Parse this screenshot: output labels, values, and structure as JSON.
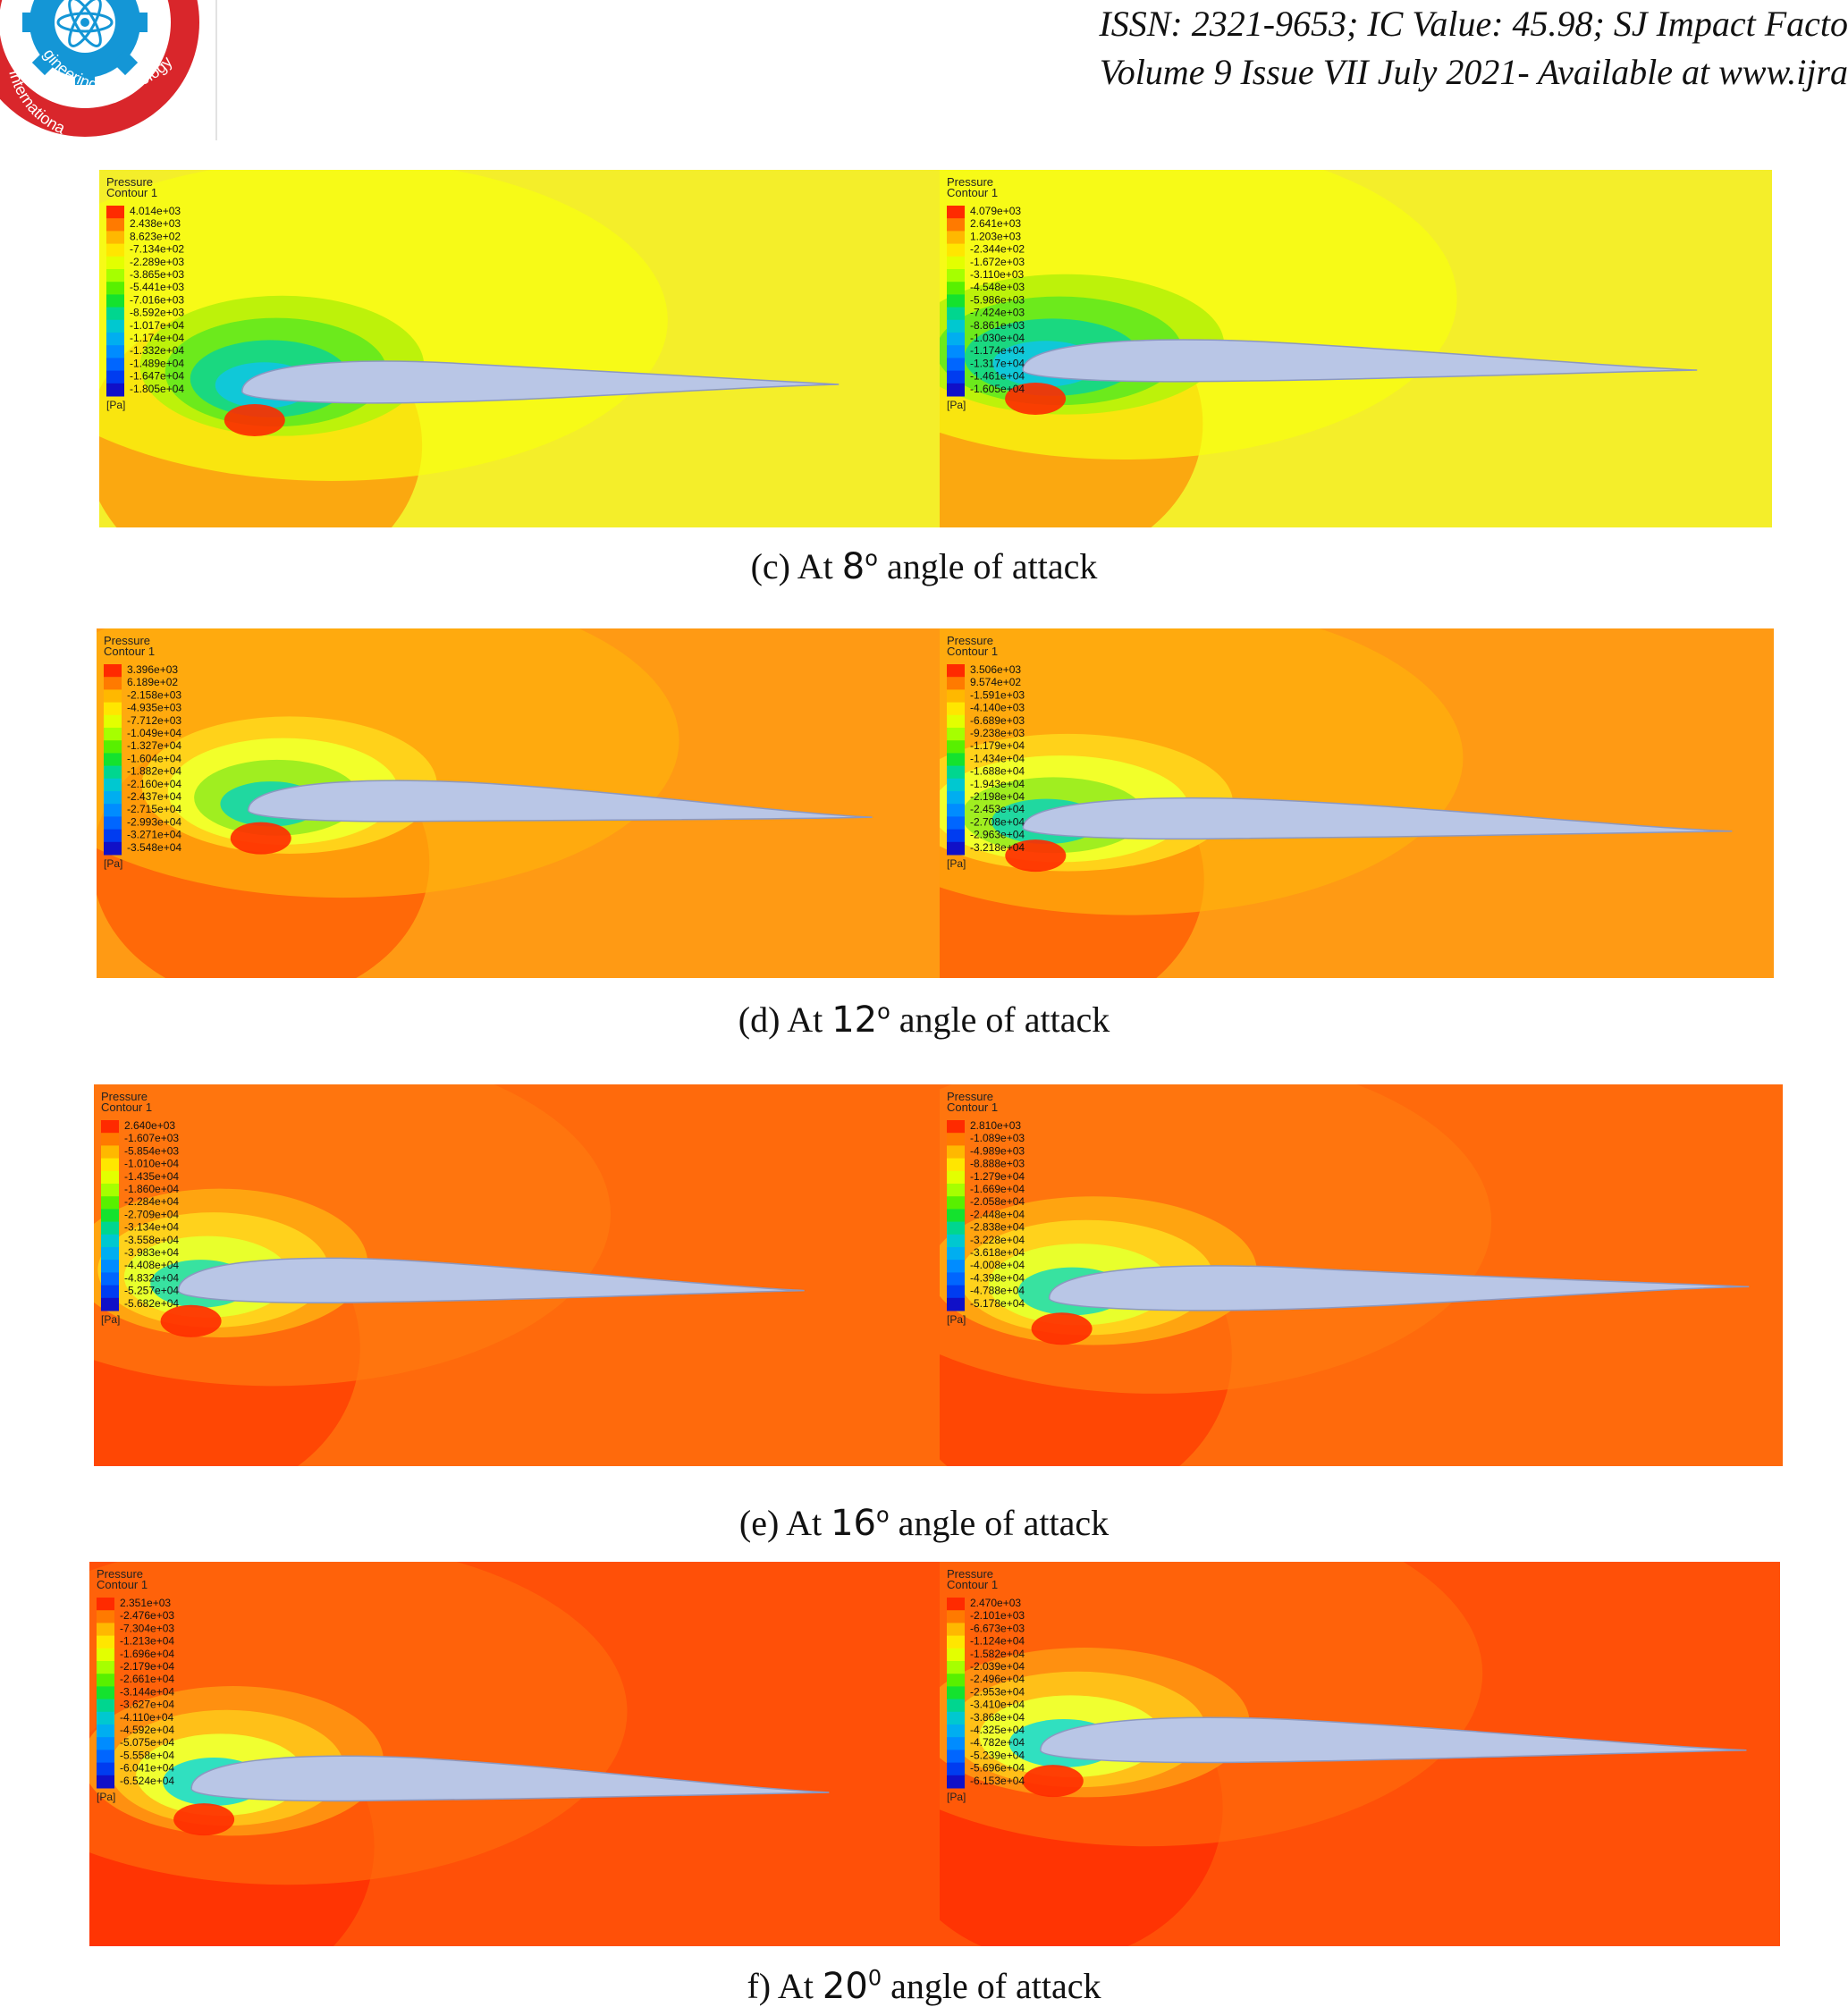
{
  "header": {
    "line1": "ISSN: 2321-9653; IC Value: 45.98; SJ Impact Facto",
    "line2": "Volume 9 Issue VII July 2021- Available at www.ijra"
  },
  "logo": {
    "arc_text_top": "gineering Technology",
    "arc_text_bottom": "Internationa"
  },
  "colors": {
    "accent": "#d9262b",
    "gear": "#1496d6",
    "airfoil": "#b9c6e6"
  },
  "rows": [
    {
      "caption": {
        "prefix": "(c) At",
        "angle": "8",
        "deg": "o",
        "suffix": "angle of attack"
      },
      "panels": [
        {
          "title": "Pressure",
          "subtitle": "Contour 1",
          "unit": "[Pa]",
          "levels": [
            "4.014e+03",
            "2.438e+03",
            "8.623e+02",
            "-7.134e+02",
            "-2.289e+03",
            "-3.865e+03",
            "-5.441e+03",
            "-7.016e+03",
            "-8.592e+03",
            "-1.017e+04",
            "-1.174e+04",
            "-1.332e+04",
            "-1.489e+04",
            "-1.647e+04",
            "-1.805e+04"
          ]
        },
        {
          "title": "Pressure",
          "subtitle": "Contour 1",
          "unit": "[Pa]",
          "levels": [
            "4.079e+03",
            "2.641e+03",
            "1.203e+03",
            "-2.344e+02",
            "-1.672e+03",
            "-3.110e+03",
            "-4.548e+03",
            "-5.986e+03",
            "-7.424e+03",
            "-8.861e+03",
            "-1.030e+04",
            "-1.174e+04",
            "-1.317e+04",
            "-1.461e+04",
            "-1.605e+04"
          ]
        }
      ]
    },
    {
      "caption": {
        "prefix": "(d) At",
        "angle": "12",
        "deg": "o",
        "suffix": "angle of attack"
      },
      "panels": [
        {
          "title": "Pressure",
          "subtitle": "Contour 1",
          "unit": "[Pa]",
          "levels": [
            "3.396e+03",
            "6.189e+02",
            "-2.158e+03",
            "-4.935e+03",
            "-7.712e+03",
            "-1.049e+04",
            "-1.327e+04",
            "-1.604e+04",
            "-1.882e+04",
            "-2.160e+04",
            "-2.437e+04",
            "-2.715e+04",
            "-2.993e+04",
            "-3.271e+04",
            "-3.548e+04"
          ]
        },
        {
          "title": "Pressure",
          "subtitle": "Contour 1",
          "unit": "[Pa]",
          "levels": [
            "3.506e+03",
            "9.574e+02",
            "-1.591e+03",
            "-4.140e+03",
            "-6.689e+03",
            "-9.238e+03",
            "-1.179e+04",
            "-1.434e+04",
            "-1.688e+04",
            "-1.943e+04",
            "-2.198e+04",
            "-2.453e+04",
            "-2.708e+04",
            "-2.963e+04",
            "-3.218e+04"
          ]
        }
      ]
    },
    {
      "caption": {
        "prefix": "(e) At",
        "angle": "16",
        "deg": "o",
        "suffix": "angle of attack"
      },
      "panels": [
        {
          "title": "Pressure",
          "subtitle": "Contour 1",
          "unit": "[Pa]",
          "levels": [
            "2.640e+03",
            "-1.607e+03",
            "-5.854e+03",
            "-1.010e+04",
            "-1.435e+04",
            "-1.860e+04",
            "-2.284e+04",
            "-2.709e+04",
            "-3.134e+04",
            "-3.558e+04",
            "-3.983e+04",
            "-4.408e+04",
            "-4.832e+04",
            "-5.257e+04",
            "-5.682e+04"
          ]
        },
        {
          "title": "Pressure",
          "subtitle": "Contour 1",
          "unit": "[Pa]",
          "levels": [
            "2.810e+03",
            "-1.089e+03",
            "-4.989e+03",
            "-8.888e+03",
            "-1.279e+04",
            "-1.669e+04",
            "-2.058e+04",
            "-2.448e+04",
            "-2.838e+04",
            "-3.228e+04",
            "-3.618e+04",
            "-4.008e+04",
            "-4.398e+04",
            "-4.788e+04",
            "-5.178e+04"
          ]
        }
      ]
    },
    {
      "caption": {
        "prefix": "f) At",
        "angle": "20",
        "deg": "0",
        "suffix": "angle of attack"
      },
      "panels": [
        {
          "title": "Pressure",
          "subtitle": "Contour 1",
          "unit": "[Pa]",
          "levels": [
            "2.351e+03",
            "-2.476e+03",
            "-7.304e+03",
            "-1.213e+04",
            "-1.696e+04",
            "-2.179e+04",
            "-2.661e+04",
            "-3.144e+04",
            "-3.627e+04",
            "-4.110e+04",
            "-4.592e+04",
            "-5.075e+04",
            "-5.558e+04",
            "-6.041e+04",
            "-6.524e+04"
          ]
        },
        {
          "title": "Pressure",
          "subtitle": "Contour 1",
          "unit": "[Pa]",
          "levels": [
            "2.470e+03",
            "-2.101e+03",
            "-6.673e+03",
            "-1.124e+04",
            "-1.582e+04",
            "-2.039e+04",
            "-2.496e+04",
            "-2.953e+04",
            "-3.410e+04",
            "-3.868e+04",
            "-4.325e+04",
            "-4.782e+04",
            "-5.239e+04",
            "-5.696e+04",
            "-6.153e+04"
          ]
        }
      ]
    }
  ]
}
